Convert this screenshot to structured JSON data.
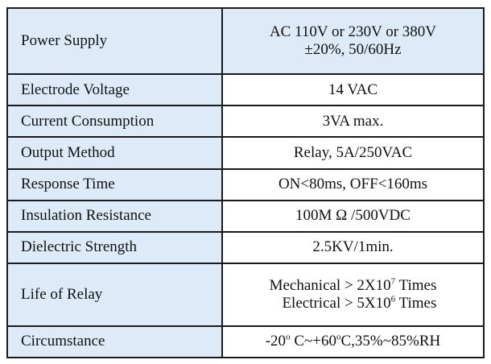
{
  "specs": {
    "power_supply": {
      "label": "Power Supply",
      "line1": "AC 110V or 230V or 380V",
      "line2_pm": "±",
      "line2_rest": "20%,  50/60Hz"
    },
    "electrode_voltage": {
      "label": "Electrode Voltage",
      "value": "14 VAC"
    },
    "current_consumption": {
      "label": "Current Consumption",
      "value": "3VA max."
    },
    "output_method": {
      "label": "Output Method",
      "value": "Relay, 5A/250VAC"
    },
    "response_time": {
      "label": "Response Time",
      "value": "ON<80ms, OFF<160ms"
    },
    "insulation_resistance": {
      "label": "Insulation Resistance",
      "value": "100M Ω /500VDC"
    },
    "dielectric_strength": {
      "label": "Dielectric Strength",
      "value": "2.5KV/1min."
    },
    "life_of_relay": {
      "label": "Life of Relay",
      "mechanical_prefix": "Mechanical > 2X10",
      "mechanical_exp": "7",
      "mechanical_suffix": " Times",
      "electrical_prefix": "Electrical > 5X10",
      "electrical_exp": "6",
      "electrical_suffix": " Times"
    },
    "circumstance": {
      "label": "Circumstance",
      "v1": "-20",
      "deg1": "o",
      "v2": " C~+60",
      "deg2": "o",
      "v3": "C,35%~85%RH"
    }
  }
}
